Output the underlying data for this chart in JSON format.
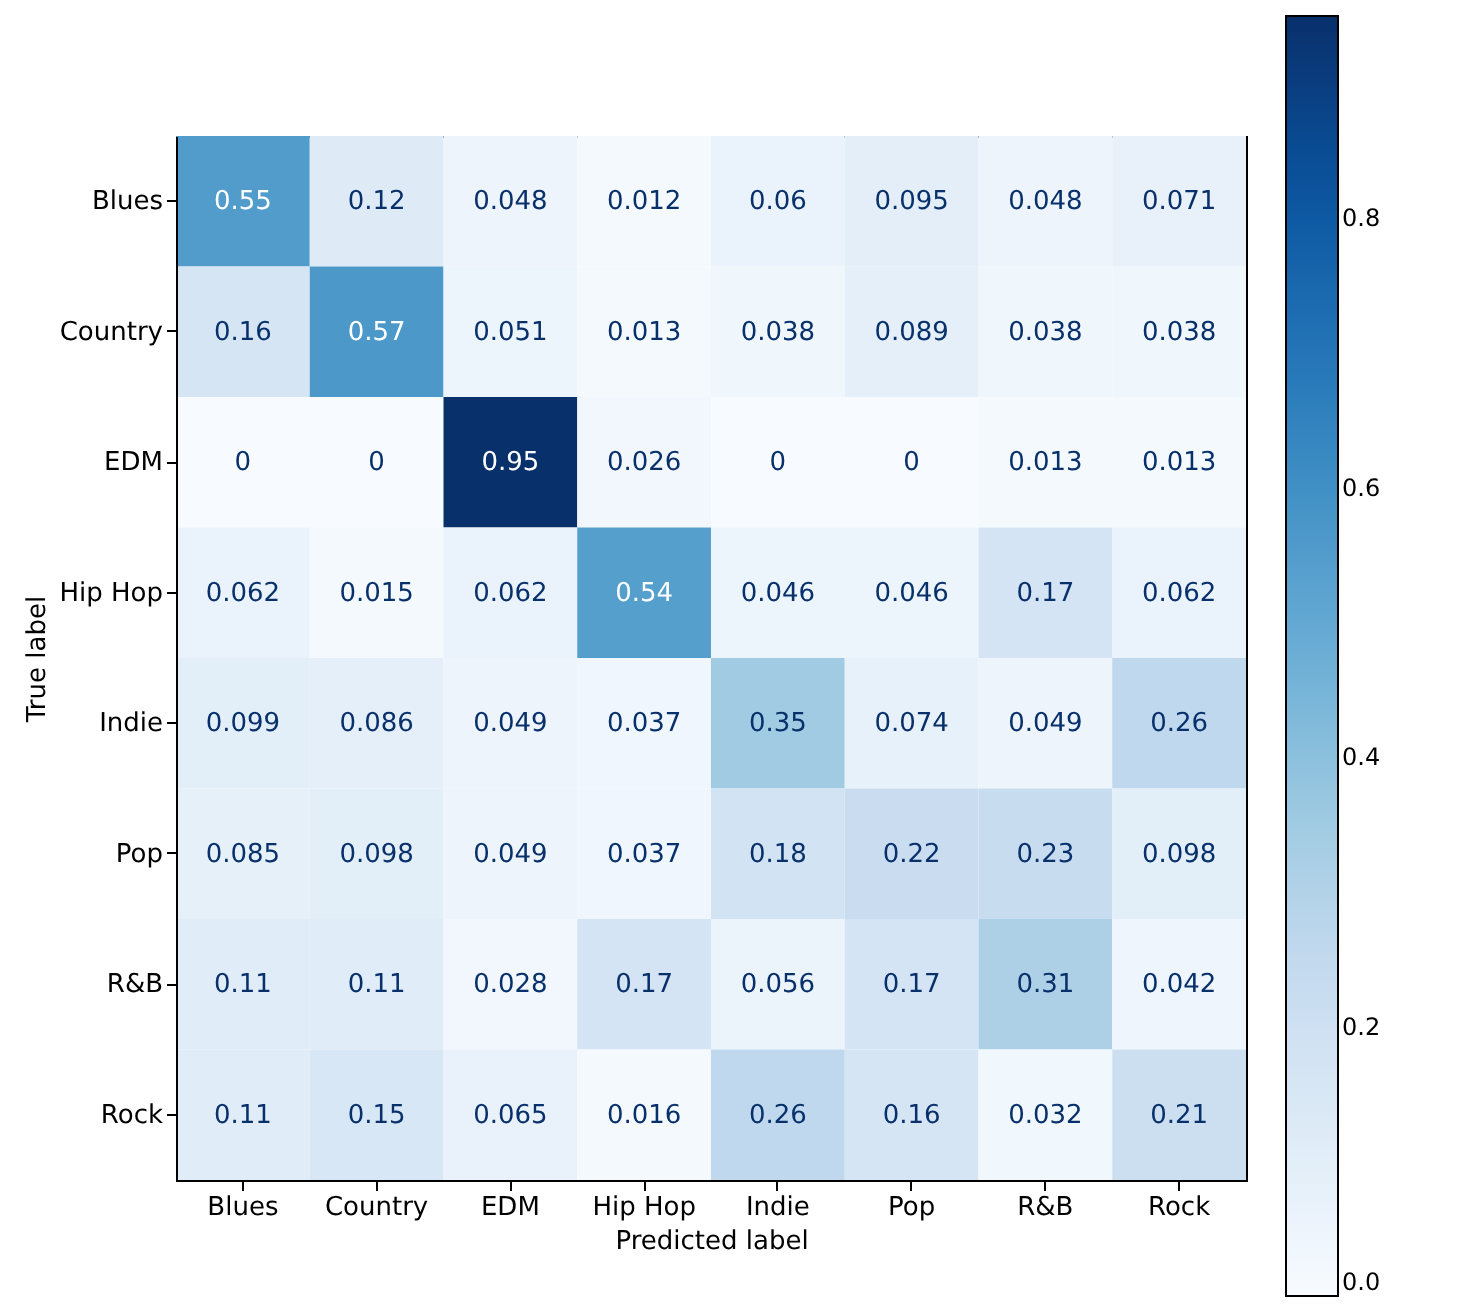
{
  "chart_data": {
    "type": "heatmap",
    "xlabel": "Predicted label",
    "ylabel": "True label",
    "categories": [
      "Blues",
      "Country",
      "EDM",
      "Hip Hop",
      "Indie",
      "Pop",
      "R&B",
      "Rock"
    ],
    "y_categories": [
      "Blues",
      "Country",
      "EDM",
      "Hip Hop",
      "Indie",
      "Pop",
      "R&B",
      "Rock"
    ],
    "cells": [
      [
        0.55,
        0.12,
        0.048,
        0.012,
        0.06,
        0.095,
        0.048,
        0.071
      ],
      [
        0.16,
        0.57,
        0.051,
        0.013,
        0.038,
        0.089,
        0.038,
        0.038
      ],
      [
        0,
        0,
        0.95,
        0.026,
        0,
        0,
        0.013,
        0.013
      ],
      [
        0.062,
        0.015,
        0.062,
        0.54,
        0.046,
        0.046,
        0.17,
        0.062
      ],
      [
        0.099,
        0.086,
        0.049,
        0.037,
        0.35,
        0.074,
        0.049,
        0.26
      ],
      [
        0.085,
        0.098,
        0.049,
        0.037,
        0.18,
        0.22,
        0.23,
        0.098
      ],
      [
        0.11,
        0.11,
        0.028,
        0.17,
        0.056,
        0.17,
        0.31,
        0.042
      ],
      [
        0.11,
        0.15,
        0.065,
        0.016,
        0.26,
        0.16,
        0.032,
        0.21
      ]
    ],
    "data_labels": true,
    "clim": [
      0,
      0.95
    ],
    "cticks": [
      {
        "value": 0,
        "label": "0.0"
      },
      {
        "value": 0.2,
        "label": "0.2"
      },
      {
        "value": 0.4,
        "label": "0.4"
      },
      {
        "value": 0.6,
        "label": "0.6"
      },
      {
        "value": 0.8,
        "label": "0.8"
      }
    ]
  }
}
